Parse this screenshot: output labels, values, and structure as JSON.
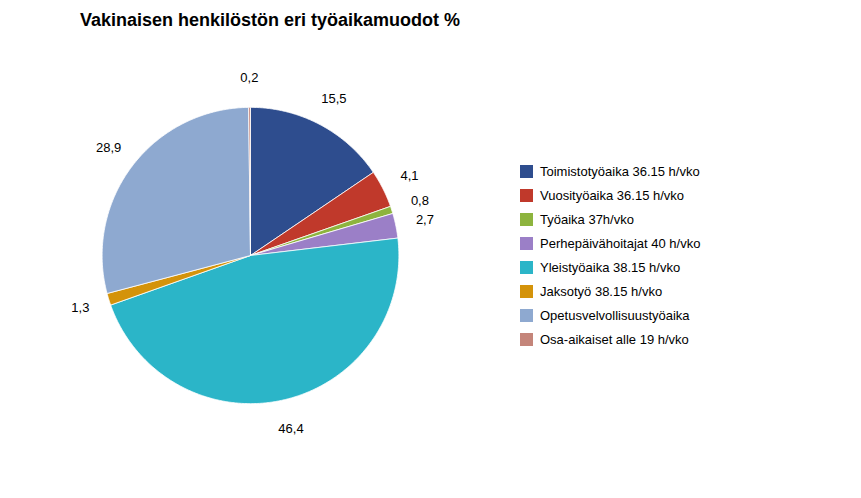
{
  "chart_data": {
    "type": "pie",
    "title": "Vakinaisen henkilöstön eri työaikamuodot %",
    "categories": [
      "Toimistotyöaika 36.15 h/vko",
      "Vuosityöaika 36.15 h/vko",
      "Työaika 37h/vko",
      "Perhepäivähoitajat 40 h/vko",
      "Yleistyöaika 38.15 h/vko",
      "Jaksotyö 38.15 h/vko",
      "Opetusvelvollisuustyöaika",
      "Osa-aikaiset alle 19 h/vko"
    ],
    "values": [
      15.5,
      4.1,
      0.8,
      2.7,
      46.4,
      1.3,
      28.9,
      0.2
    ],
    "value_labels": [
      "15,5",
      "4,1",
      "0,8",
      "2,7",
      "46,4",
      "1,3",
      "28,9",
      "0,2"
    ],
    "colors": [
      "#2E4D8E",
      "#C0392B",
      "#8DB43E",
      "#9B7FC7",
      "#2BB5C8",
      "#D4930A",
      "#8EA9D0",
      "#C4857A"
    ],
    "data_labels": true,
    "legend": "right"
  }
}
